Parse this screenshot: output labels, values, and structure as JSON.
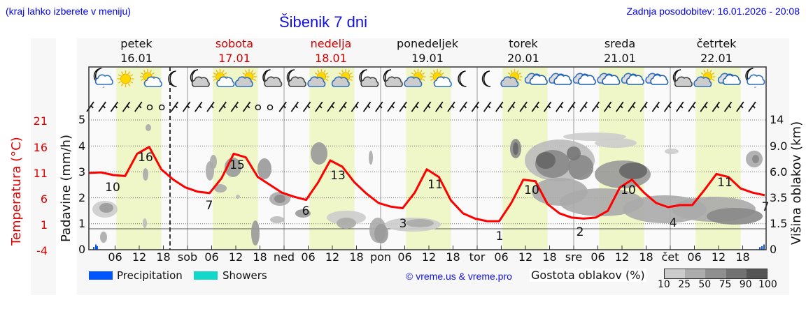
{
  "header": {
    "hint_link": "(kraj lahko izberete v meniju)",
    "title": "Šibenik 7 dni",
    "updated": "Zadnja posodobitev: 16.01.2026 - 20:08"
  },
  "days": [
    {
      "name": "petek",
      "date": "16.01",
      "weekend": false
    },
    {
      "name": "sobota",
      "date": "17.01",
      "weekend": true
    },
    {
      "name": "nedelja",
      "date": "18.01",
      "weekend": true
    },
    {
      "name": "ponedeljek",
      "date": "19.01",
      "weekend": false
    },
    {
      "name": "torek",
      "date": "20.01",
      "weekend": false
    },
    {
      "name": "sreda",
      "date": "21.01",
      "weekend": false
    },
    {
      "name": "četrtek",
      "date": "22.01",
      "weekend": false
    }
  ],
  "axes": {
    "left_temp_label": "Temperatura (°C)",
    "left_temp_ticks": [
      "21",
      "16",
      "11",
      "6",
      "1",
      "-4"
    ],
    "left_precip_label": "Padavine (mm/h)",
    "left_precip_ticks": [
      "5",
      "4",
      "3",
      "2",
      "1",
      "0"
    ],
    "right_label": "Višina oblakov (km)",
    "right_ticks": [
      "14",
      "9.0",
      "6.0",
      "3.5",
      "1.5",
      "0"
    ],
    "x_ticks": [
      "06",
      "12",
      "18",
      "sob",
      "06",
      "12",
      "18",
      "ned",
      "06",
      "12",
      "18",
      "pon",
      "06",
      "12",
      "18",
      "tor",
      "06",
      "12",
      "18",
      "sre",
      "06",
      "12",
      "18",
      "čet",
      "06",
      "12",
      "18"
    ]
  },
  "legend": {
    "precipitation": "Precipitation",
    "showers": "Showers",
    "precip_color": "#0055ff",
    "showers_color": "#11d8c8",
    "copyright": "© vreme.us & vreme.pro",
    "cloud_title": "Gostota oblakov (%)",
    "cloud_scale": [
      "10",
      "25",
      "50",
      "75",
      "90",
      "100"
    ],
    "cloud_colors": [
      "#cccccc",
      "#adadad",
      "#8f8f8f",
      "#727272",
      "#555555"
    ]
  },
  "icons": [
    "moon-cloud-rain",
    "sun",
    "sun-cloud",
    "moon",
    "moon-cloud",
    "sun-cloud",
    "sun-cloud-grey",
    "moon-cloud",
    "moon-cloud",
    "sun-cloud-grey",
    "sun-cloud-grey",
    "moon-cloud",
    "moon-cloud",
    "sun-cloud-grey",
    "sun-cloud",
    "moon",
    "moon",
    "sun-cloud-grey",
    "cloud",
    "cloud",
    "cloud",
    "cloud",
    "cloud",
    "cloud",
    "moon-cloud",
    "sun-cloud-grey",
    "cloud",
    "moon-cloud-rain"
  ],
  "chart_data": {
    "type": "line",
    "title": "Šibenik 7 dni",
    "xlabel": "",
    "ylabel": "Temperatura (°C) / Padavine (mm/h)",
    "y2label": "Višina oblakov (km)",
    "ylim_temp": [
      -4,
      21
    ],
    "ylim_precip": [
      0,
      5
    ],
    "grid": true,
    "series": [
      {
        "name": "Temperatura",
        "color": "#ff0000",
        "hours": [
          0,
          3,
          6,
          9,
          12,
          15,
          18,
          21,
          24,
          27,
          30,
          33,
          36,
          39,
          42,
          45,
          48,
          51,
          54,
          57,
          60,
          63,
          66,
          69,
          72,
          75,
          78,
          81,
          84,
          87,
          90,
          93,
          96,
          99,
          102,
          105,
          108,
          111,
          114,
          117,
          120,
          123,
          126,
          129,
          132,
          135,
          138,
          141,
          144,
          147,
          150,
          153,
          156,
          159,
          162,
          165,
          168
        ],
        "values": [
          10.8,
          10.9,
          10.4,
          10.2,
          14.5,
          15.8,
          11.5,
          9.5,
          8.0,
          7.2,
          6.9,
          9.8,
          14.5,
          13.8,
          10.0,
          8.5,
          7.0,
          6.2,
          5.6,
          9.0,
          13.2,
          12.0,
          9.0,
          6.8,
          5.0,
          4.3,
          4.0,
          7.0,
          11.5,
          10.0,
          5.5,
          3.0,
          2.0,
          1.5,
          1.5,
          5.0,
          9.5,
          9.2,
          4.8,
          3.0,
          2.2,
          2.0,
          2.2,
          3.5,
          8.0,
          9.5,
          7.0,
          5.0,
          4.2,
          4.6,
          4.6,
          7.5,
          10.6,
          10.0,
          7.8,
          7.0,
          6.5
        ]
      }
    ],
    "annotations": [
      {
        "label": "10",
        "day": "16.01",
        "type": "min"
      },
      {
        "label": "16",
        "day": "16.01",
        "type": "max"
      },
      {
        "label": "7",
        "day": "17.01",
        "type": "min"
      },
      {
        "label": "15",
        "day": "17.01",
        "type": "max"
      },
      {
        "label": "6",
        "day": "18.01",
        "type": "min"
      },
      {
        "label": "13",
        "day": "18.01",
        "type": "max"
      },
      {
        "label": "3",
        "day": "19.01",
        "type": "min"
      },
      {
        "label": "11",
        "day": "19.01",
        "type": "max"
      },
      {
        "label": "1",
        "day": "20.01",
        "type": "min"
      },
      {
        "label": "10",
        "day": "20.01",
        "type": "max"
      },
      {
        "label": "2",
        "day": "21.01",
        "type": "min"
      },
      {
        "label": "10",
        "day": "21.01",
        "type": "max"
      },
      {
        "label": "4",
        "day": "22.01",
        "type": "min"
      },
      {
        "label": "11",
        "day": "22.01",
        "type": "max"
      },
      {
        "label": "7",
        "day": "23.01",
        "type": "min"
      }
    ],
    "precipitation_mm_h": {
      "16.01_early": 0.15,
      "22.01_late": 0.1
    },
    "now_marker": "16.01 20:00"
  }
}
